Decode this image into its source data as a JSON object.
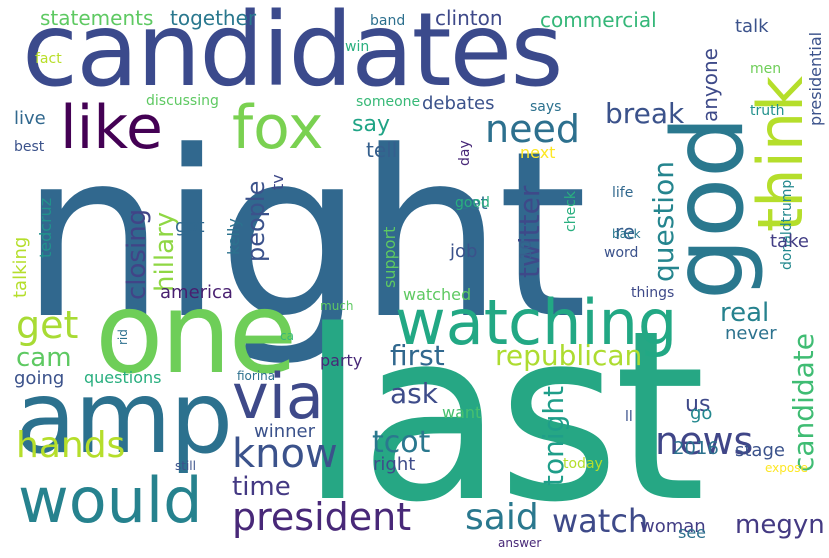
{
  "words": [
    {
      "text": "night",
      "color": "#31688e"
    },
    {
      "text": "last",
      "color": "#26a784"
    },
    {
      "text": "candidates",
      "color": "#3b4a8c"
    },
    {
      "text": "one",
      "color": "#6ece58"
    },
    {
      "text": "amp",
      "color": "#2c718e"
    },
    {
      "text": "god",
      "color": "#2a788e"
    },
    {
      "text": "think",
      "color": "#b5de2b"
    },
    {
      "text": "like",
      "color": "#440154"
    },
    {
      "text": "fox",
      "color": "#7ad151"
    },
    {
      "text": "watching",
      "color": "#22a884"
    },
    {
      "text": "via",
      "color": "#3e4989"
    },
    {
      "text": "would",
      "color": "#26828e"
    },
    {
      "text": "president",
      "color": "#482878"
    },
    {
      "text": "know",
      "color": "#3b528b"
    },
    {
      "text": "need",
      "color": "#2d708e"
    },
    {
      "text": "news",
      "color": "#404688"
    },
    {
      "text": "said",
      "color": "#2a788e"
    },
    {
      "text": "watch",
      "color": "#3e4a89"
    },
    {
      "text": "get",
      "color": "#a8db34"
    },
    {
      "text": "hands",
      "color": "#b5de2b"
    },
    {
      "text": "time",
      "color": "#443983"
    },
    {
      "text": "first",
      "color": "#31688e"
    },
    {
      "text": "republican",
      "color": "#addc30"
    },
    {
      "text": "ask",
      "color": "#3e4c8a"
    },
    {
      "text": "tcot",
      "color": "#2a788e"
    },
    {
      "text": "cam",
      "color": "#5ec962"
    },
    {
      "text": "break",
      "color": "#3b528b"
    },
    {
      "text": "twitter",
      "color": "#3e4989"
    },
    {
      "text": "question",
      "color": "#25858e"
    },
    {
      "text": "candidate",
      "color": "#3fbc73"
    },
    {
      "text": "tonight",
      "color": "#1f9e89"
    },
    {
      "text": "megyn",
      "color": "#443a83"
    },
    {
      "text": "closing",
      "color": "#414487"
    },
    {
      "text": "hillary",
      "color": "#8fd744"
    },
    {
      "text": "people",
      "color": "#3b528b"
    },
    {
      "text": "say",
      "color": "#20a486"
    },
    {
      "text": "tell",
      "color": "#355f8d"
    },
    {
      "text": "real",
      "color": "#26828e"
    },
    {
      "text": "statements",
      "color": "#5ec962"
    },
    {
      "text": "together",
      "color": "#2a788e"
    },
    {
      "text": "clinton",
      "color": "#3e4989"
    },
    {
      "text": "commercial",
      "color": "#35b779"
    },
    {
      "text": "talk",
      "color": "#3b528b"
    },
    {
      "text": "anyone",
      "color": "#3e4a89"
    },
    {
      "text": "band",
      "color": "#2d708e"
    },
    {
      "text": "win",
      "color": "#29af7f"
    },
    {
      "text": "fact",
      "color": "#b8de29"
    },
    {
      "text": "men",
      "color": "#6ece58"
    },
    {
      "text": "presidential",
      "color": "#3b528b"
    },
    {
      "text": "discussing",
      "color": "#5ec962"
    },
    {
      "text": "someone",
      "color": "#38b977"
    },
    {
      "text": "debates",
      "color": "#3b528b"
    },
    {
      "text": "says",
      "color": "#2c718e"
    },
    {
      "text": "truth",
      "color": "#21918c"
    },
    {
      "text": "live",
      "color": "#31688e"
    },
    {
      "text": "best",
      "color": "#3b528b"
    },
    {
      "text": "next",
      "color": "#fde725"
    },
    {
      "text": "day",
      "color": "#482878"
    },
    {
      "text": "life",
      "color": "#31688e"
    },
    {
      "text": "donaldtrump",
      "color": "#23888e"
    },
    {
      "text": "tv",
      "color": "#3e4989"
    },
    {
      "text": "set",
      "color": "#2c728e"
    },
    {
      "text": "got",
      "color": "#31688e"
    },
    {
      "text": "kelly",
      "color": "#2c728e"
    },
    {
      "text": "re",
      "color": "#355f8d"
    },
    {
      "text": "good",
      "color": "#29af7f"
    },
    {
      "text": "check",
      "color": "#29af7f"
    },
    {
      "text": "support",
      "color": "#5ec962"
    },
    {
      "text": "10",
      "color": "#355f8d"
    },
    {
      "text": "talking",
      "color": "#b5de2b"
    },
    {
      "text": "tedcruz",
      "color": "#21918c"
    },
    {
      "text": "job",
      "color": "#3b528b"
    },
    {
      "text": "take",
      "color": "#433e85"
    },
    {
      "text": "back",
      "color": "#2a788e"
    },
    {
      "text": "word",
      "color": "#3b528b"
    },
    {
      "text": "america",
      "color": "#481f70"
    },
    {
      "text": "watched",
      "color": "#5ec962"
    },
    {
      "text": "things",
      "color": "#3e4989"
    },
    {
      "text": "much",
      "color": "#5ec962"
    },
    {
      "text": "rid",
      "color": "#2d708e"
    },
    {
      "text": "ca",
      "color": "#38b977"
    },
    {
      "text": "party",
      "color": "#482878"
    },
    {
      "text": "never",
      "color": "#2c728e"
    },
    {
      "text": "going",
      "color": "#3b528b"
    },
    {
      "text": "questions",
      "color": "#29af7f"
    },
    {
      "text": "fiorina",
      "color": "#2d708e"
    },
    {
      "text": "want",
      "color": "#46c06f"
    },
    {
      "text": "winner",
      "color": "#3b528b"
    },
    {
      "text": "ll",
      "color": "#3b528b"
    },
    {
      "text": "us",
      "color": "#3e4989"
    },
    {
      "text": "go",
      "color": "#23888e"
    },
    {
      "text": "stage",
      "color": "#3b528b"
    },
    {
      "text": "2016",
      "color": "#2c728e"
    },
    {
      "text": "right",
      "color": "#3e4c8a"
    },
    {
      "text": "still",
      "color": "#3b528b"
    },
    {
      "text": "today",
      "color": "#b5de2b"
    },
    {
      "text": "expose",
      "color": "#fde725"
    },
    {
      "text": "woman",
      "color": "#433e85"
    },
    {
      "text": "see",
      "color": "#2d708e"
    },
    {
      "text": "answer",
      "color": "#482878"
    }
  ]
}
